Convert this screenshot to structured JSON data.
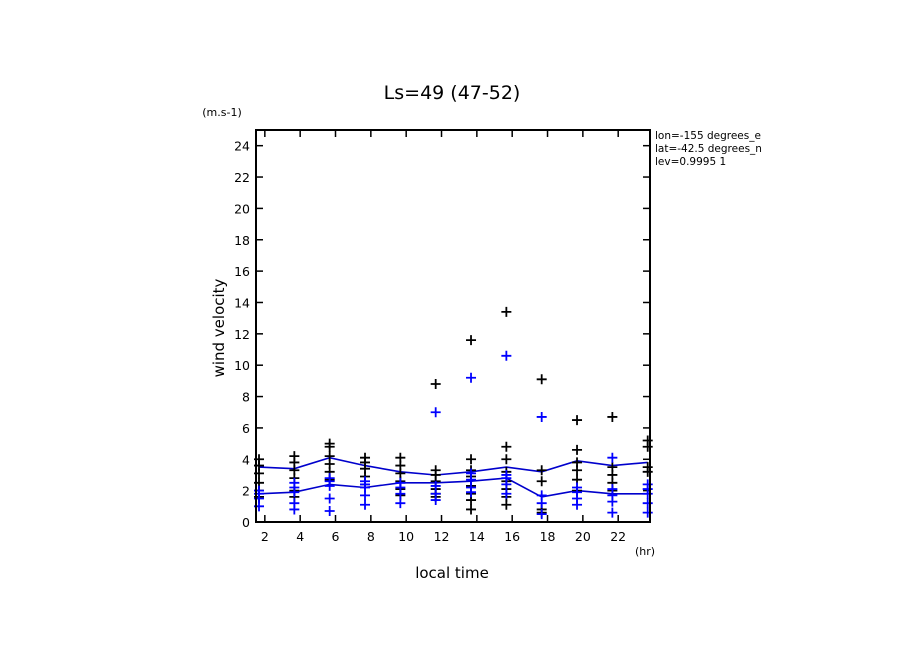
{
  "chart_data": {
    "type": "scatter",
    "title": "Ls=49 (47-52)",
    "ylabel": "wind velocity",
    "yunit": "(m.s-1)",
    "xlabel": "local time",
    "xunit": "(hr)",
    "info_lines": [
      "lon=-155 degrees_e",
      "lat=-42.5 degrees_n",
      "lev=0.9995 1"
    ],
    "xlim": [
      1.5,
      23.8
    ],
    "ylim": [
      0,
      25
    ],
    "xticks": [
      2,
      4,
      6,
      8,
      10,
      12,
      14,
      16,
      18,
      20,
      22
    ],
    "yticks": [
      0,
      2,
      4,
      6,
      8,
      10,
      12,
      14,
      16,
      18,
      20,
      22,
      24
    ],
    "colors": {
      "series_a": "#000000",
      "series_b": "#0000ff",
      "line": "#0000cc"
    },
    "series": [
      {
        "color": "#000000",
        "points": [
          [
            1.67,
            4.0
          ],
          [
            1.67,
            3.6
          ],
          [
            1.67,
            3.1
          ],
          [
            1.67,
            2.5
          ],
          [
            1.67,
            2.0
          ],
          [
            1.67,
            1.6
          ],
          [
            3.67,
            4.2
          ],
          [
            3.67,
            3.8
          ],
          [
            3.67,
            3.3
          ],
          [
            3.67,
            2.8
          ],
          [
            3.67,
            2.0
          ],
          [
            3.67,
            1.6
          ],
          [
            5.67,
            5.0
          ],
          [
            5.67,
            4.8
          ],
          [
            5.67,
            4.2
          ],
          [
            5.67,
            3.7
          ],
          [
            5.67,
            3.2
          ],
          [
            5.67,
            2.7
          ],
          [
            7.67,
            4.1
          ],
          [
            7.67,
            3.8
          ],
          [
            7.67,
            3.4
          ],
          [
            7.67,
            2.9
          ],
          [
            7.67,
            2.4
          ],
          [
            9.67,
            4.1
          ],
          [
            9.67,
            3.6
          ],
          [
            9.67,
            3.1
          ],
          [
            9.67,
            2.6
          ],
          [
            9.67,
            2.1
          ],
          [
            9.67,
            1.7
          ],
          [
            11.67,
            8.8
          ],
          [
            11.67,
            3.3
          ],
          [
            11.67,
            3.0
          ],
          [
            11.67,
            2.6
          ],
          [
            11.67,
            2.1
          ],
          [
            11.67,
            1.8
          ],
          [
            11.67,
            1.6
          ],
          [
            13.67,
            11.6
          ],
          [
            13.67,
            4.0
          ],
          [
            13.67,
            3.3
          ],
          [
            13.67,
            2.9
          ],
          [
            13.67,
            2.3
          ],
          [
            13.67,
            1.8
          ],
          [
            13.67,
            1.4
          ],
          [
            13.67,
            0.8
          ],
          [
            15.67,
            13.4
          ],
          [
            15.67,
            4.8
          ],
          [
            15.67,
            4.0
          ],
          [
            15.67,
            3.2
          ],
          [
            15.67,
            2.6
          ],
          [
            15.67,
            2.1
          ],
          [
            15.67,
            1.6
          ],
          [
            15.67,
            1.1
          ],
          [
            17.67,
            9.1
          ],
          [
            17.67,
            3.3
          ],
          [
            17.67,
            2.6
          ],
          [
            17.67,
            0.8
          ],
          [
            17.67,
            0.6
          ],
          [
            19.67,
            6.5
          ],
          [
            19.67,
            4.6
          ],
          [
            19.67,
            3.8
          ],
          [
            19.67,
            3.3
          ],
          [
            19.67,
            2.7
          ],
          [
            19.67,
            2.0
          ],
          [
            21.67,
            6.7
          ],
          [
            21.67,
            3.5
          ],
          [
            21.67,
            3.0
          ],
          [
            21.67,
            2.5
          ],
          [
            21.67,
            2.0
          ],
          [
            23.67,
            5.2
          ],
          [
            23.67,
            4.8
          ],
          [
            23.67,
            3.5
          ],
          [
            23.67,
            3.2
          ]
        ]
      },
      {
        "color": "#0000ff",
        "points": [
          [
            1.67,
            2.0
          ],
          [
            1.67,
            1.8
          ],
          [
            1.67,
            1.5
          ],
          [
            1.67,
            1.0
          ],
          [
            3.67,
            2.5
          ],
          [
            3.67,
            2.2
          ],
          [
            3.67,
            1.9
          ],
          [
            3.67,
            1.2
          ],
          [
            3.67,
            0.8
          ],
          [
            5.67,
            2.8
          ],
          [
            5.67,
            2.6
          ],
          [
            5.67,
            2.3
          ],
          [
            5.67,
            1.5
          ],
          [
            5.67,
            0.7
          ],
          [
            7.67,
            2.6
          ],
          [
            7.67,
            2.4
          ],
          [
            7.67,
            2.2
          ],
          [
            7.67,
            1.7
          ],
          [
            7.67,
            1.1
          ],
          [
            9.67,
            2.5
          ],
          [
            9.67,
            2.2
          ],
          [
            9.67,
            1.8
          ],
          [
            9.67,
            1.2
          ],
          [
            11.67,
            7.0
          ],
          [
            11.67,
            2.3
          ],
          [
            11.67,
            1.8
          ],
          [
            11.67,
            1.4
          ],
          [
            13.67,
            9.2
          ],
          [
            13.67,
            3.1
          ],
          [
            13.67,
            2.7
          ],
          [
            13.67,
            2.2
          ],
          [
            13.67,
            1.9
          ],
          [
            15.67,
            10.6
          ],
          [
            15.67,
            3.0
          ],
          [
            15.67,
            2.8
          ],
          [
            15.67,
            2.4
          ],
          [
            15.67,
            1.8
          ],
          [
            17.67,
            6.7
          ],
          [
            17.67,
            1.7
          ],
          [
            17.67,
            1.2
          ],
          [
            17.67,
            0.5
          ],
          [
            19.67,
            2.2
          ],
          [
            19.67,
            1.9
          ],
          [
            19.67,
            1.5
          ],
          [
            19.67,
            1.1
          ],
          [
            21.67,
            4.1
          ],
          [
            21.67,
            2.1
          ],
          [
            21.67,
            1.7
          ],
          [
            21.67,
            1.3
          ],
          [
            21.67,
            0.6
          ],
          [
            23.67,
            2.4
          ],
          [
            23.67,
            2.1
          ],
          [
            23.67,
            1.8
          ],
          [
            23.67,
            1.2
          ],
          [
            23.67,
            0.6
          ]
        ]
      }
    ],
    "lines": [
      {
        "color": "#0000cc",
        "x": [
          1.67,
          3.67,
          5.67,
          7.67,
          9.67,
          11.67,
          13.67,
          15.67,
          17.67,
          19.67,
          21.67,
          23.67
        ],
        "y": [
          3.5,
          3.4,
          4.1,
          3.6,
          3.2,
          3.0,
          3.2,
          3.5,
          3.2,
          3.9,
          3.6,
          3.8
        ]
      },
      {
        "color": "#0000cc",
        "x": [
          1.67,
          3.67,
          5.67,
          7.67,
          9.67,
          11.67,
          13.67,
          15.67,
          17.67,
          19.67,
          21.67,
          23.67
        ],
        "y": [
          1.8,
          1.9,
          2.4,
          2.2,
          2.5,
          2.5,
          2.6,
          2.8,
          1.6,
          2.0,
          1.8,
          1.8
        ]
      }
    ]
  }
}
